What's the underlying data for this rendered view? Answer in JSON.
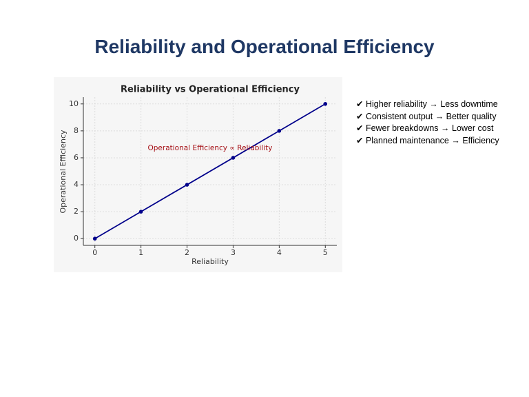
{
  "slide_title": "Reliability and Operational Efficiency",
  "bullets": [
    "✔ Higher reliability → Less downtime",
    "✔ Consistent output → Better quality",
    "✔ Fewer breakdowns → Lower cost",
    "✔ Planned maintenance → Efficiency"
  ],
  "chart_data": {
    "type": "line",
    "title": "Reliability vs Operational Efficiency",
    "x_label": "Reliability",
    "y_label": "Operational Efficiency",
    "annotation": "Operational Efficiency ∝ Reliability",
    "x": [
      0,
      1,
      2,
      3,
      4,
      5
    ],
    "series": [
      {
        "name": "Operational Efficiency",
        "color": "#00008b",
        "values": [
          0,
          2,
          4,
          6,
          8,
          10
        ]
      }
    ],
    "xlim": [
      -0.25,
      5.25
    ],
    "xticks": [
      0,
      1,
      2,
      3,
      4,
      5
    ],
    "ylim": [
      -0.5,
      10.5
    ],
    "yticks": [
      0,
      2,
      4,
      6,
      8,
      10
    ],
    "grid": true,
    "annotation_color": "#a50f15"
  }
}
